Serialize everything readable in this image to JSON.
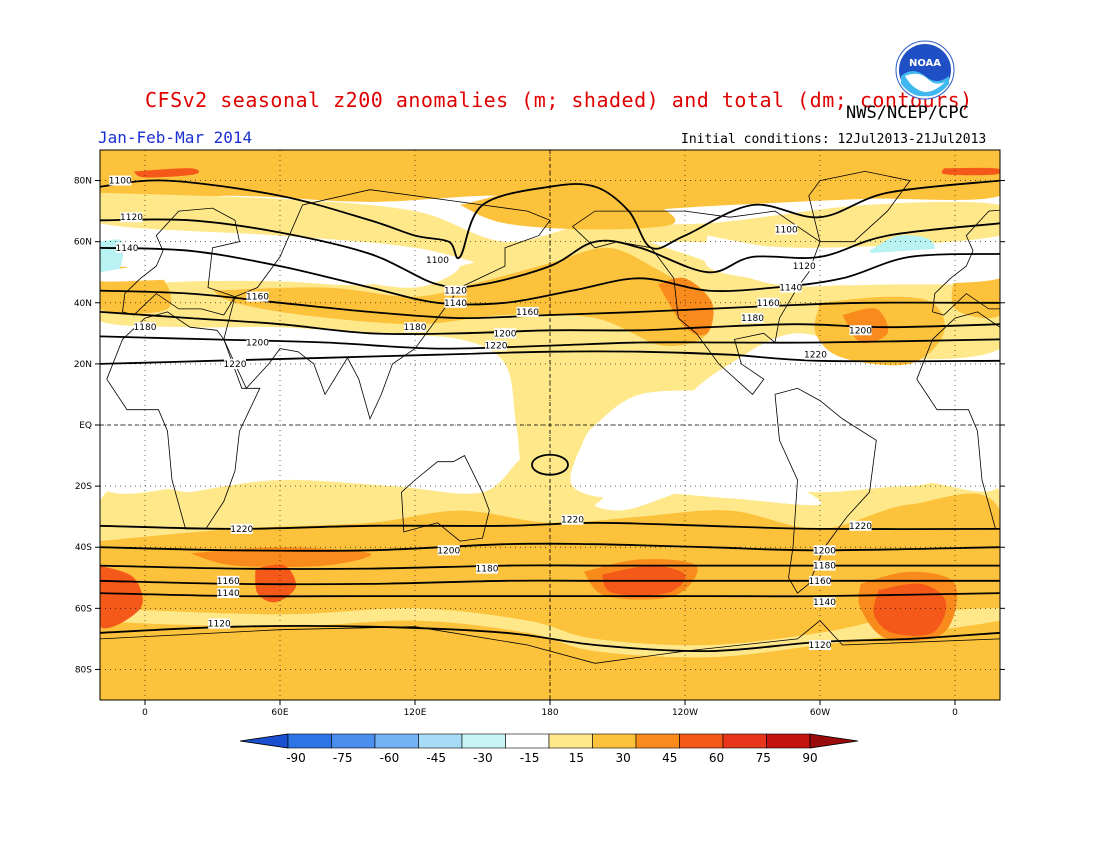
{
  "header": {
    "title": "CFSv2 seasonal z200 anomalies (m; shaded) and total (dm; contours)",
    "agency": "NWS/NCEP/CPC",
    "period": "Jan-Feb-Mar 2014",
    "initial_conditions": "Initial conditions: 12Jul2013-21Jul2013"
  },
  "logo": {
    "text": "NOAA",
    "icon": "noaa-logo"
  },
  "map": {
    "lat_labels": [
      "80N",
      "60N",
      "40N",
      "20N",
      "EQ",
      "20S",
      "40S",
      "60S",
      "80S"
    ],
    "lon_labels": [
      "0",
      "60E",
      "120E",
      "180",
      "120W",
      "60W",
      "0"
    ],
    "lat_values": [
      80,
      60,
      40,
      20,
      0,
      -20,
      -40,
      -60,
      -80
    ],
    "lon_values": [
      0,
      60,
      120,
      180,
      240,
      300,
      360
    ],
    "lon_range": [
      -20,
      380
    ],
    "lat_range": [
      -90,
      90
    ],
    "colors": {
      "c15_30": "#ffe88a",
      "c30_45": "#fdc23c",
      "c45_60": "#f98b1c",
      "cneg15_30": "#b9f2f2",
      "c60_75": "#f5591a"
    },
    "contours": [
      {
        "label": "1100",
        "points": [
          [
            -20,
            78
          ],
          [
            10,
            80
          ],
          [
            60,
            75
          ],
          [
            100,
            67
          ],
          [
            120,
            62
          ],
          [
            135,
            60
          ],
          [
            140,
            55
          ],
          [
            150,
            72
          ],
          [
            180,
            78
          ],
          [
            200,
            78
          ],
          [
            215,
            70
          ],
          [
            225,
            58
          ],
          [
            240,
            62
          ],
          [
            270,
            72
          ],
          [
            300,
            68
          ],
          [
            330,
            76
          ],
          [
            380,
            80
          ]
        ]
      },
      {
        "label": "1120",
        "points": [
          [
            -20,
            67
          ],
          [
            20,
            67
          ],
          [
            60,
            63
          ],
          [
            100,
            56
          ],
          [
            130,
            46
          ],
          [
            150,
            46
          ],
          [
            180,
            52
          ],
          [
            200,
            60
          ],
          [
            220,
            58
          ],
          [
            250,
            50
          ],
          [
            270,
            55
          ],
          [
            300,
            55
          ],
          [
            330,
            62
          ],
          [
            380,
            66
          ]
        ]
      },
      {
        "label": "1140",
        "points": [
          [
            -20,
            58
          ],
          [
            20,
            57
          ],
          [
            60,
            52
          ],
          [
            100,
            45
          ],
          [
            130,
            40
          ],
          [
            160,
            40
          ],
          [
            190,
            44
          ],
          [
            220,
            48
          ],
          [
            250,
            44
          ],
          [
            280,
            45
          ],
          [
            310,
            48
          ],
          [
            340,
            55
          ],
          [
            380,
            56
          ]
        ]
      },
      {
        "label": "1160",
        "points": [
          [
            -20,
            44
          ],
          [
            20,
            43
          ],
          [
            60,
            40
          ],
          [
            100,
            37
          ],
          [
            140,
            35
          ],
          [
            180,
            36
          ],
          [
            220,
            37
          ],
          [
            250,
            38
          ],
          [
            280,
            39
          ],
          [
            320,
            40
          ],
          [
            380,
            40
          ]
        ]
      },
      {
        "label": "1180",
        "points": [
          [
            -20,
            37
          ],
          [
            20,
            35
          ],
          [
            60,
            33
          ],
          [
            100,
            30
          ],
          [
            140,
            30
          ],
          [
            180,
            31
          ],
          [
            220,
            31
          ],
          [
            250,
            32
          ],
          [
            290,
            33
          ],
          [
            330,
            32
          ],
          [
            380,
            33
          ]
        ]
      },
      {
        "label": "1200",
        "points": [
          [
            -20,
            29
          ],
          [
            30,
            28
          ],
          [
            80,
            27
          ],
          [
            130,
            25
          ],
          [
            180,
            26
          ],
          [
            220,
            27
          ],
          [
            260,
            27
          ],
          [
            300,
            27
          ],
          [
            380,
            28
          ]
        ]
      },
      {
        "label": "1220",
        "points": [
          [
            -20,
            20
          ],
          [
            30,
            21
          ],
          [
            80,
            22
          ],
          [
            130,
            23
          ],
          [
            180,
            24
          ],
          [
            220,
            24
          ],
          [
            260,
            23
          ],
          [
            300,
            21
          ],
          [
            380,
            21
          ]
        ]
      },
      {
        "label": "1220",
        "points": [
          [
            -20,
            -33
          ],
          [
            40,
            -34
          ],
          [
            100,
            -33
          ],
          [
            160,
            -33
          ],
          [
            200,
            -32
          ],
          [
            250,
            -33
          ],
          [
            300,
            -34
          ],
          [
            380,
            -34
          ]
        ]
      },
      {
        "label": "1200",
        "points": [
          [
            -20,
            -40
          ],
          [
            40,
            -41
          ],
          [
            100,
            -41
          ],
          [
            160,
            -39
          ],
          [
            200,
            -39
          ],
          [
            250,
            -40
          ],
          [
            300,
            -41
          ],
          [
            380,
            -40
          ]
        ]
      },
      {
        "label": "1180",
        "points": [
          [
            -20,
            -46
          ],
          [
            40,
            -47
          ],
          [
            100,
            -47
          ],
          [
            160,
            -46
          ],
          [
            200,
            -46
          ],
          [
            250,
            -46
          ],
          [
            300,
            -46
          ],
          [
            380,
            -46
          ]
        ]
      },
      {
        "label": "1160",
        "points": [
          [
            -20,
            -51
          ],
          [
            40,
            -52
          ],
          [
            100,
            -52
          ],
          [
            160,
            -51
          ],
          [
            200,
            -51
          ],
          [
            250,
            -51
          ],
          [
            300,
            -51
          ],
          [
            380,
            -51
          ]
        ]
      },
      {
        "label": "1140",
        "points": [
          [
            -20,
            -55
          ],
          [
            40,
            -56
          ],
          [
            100,
            -56
          ],
          [
            160,
            -56
          ],
          [
            200,
            -56
          ],
          [
            250,
            -56
          ],
          [
            300,
            -56
          ],
          [
            380,
            -55
          ]
        ]
      },
      {
        "label": "1120",
        "points": [
          [
            -20,
            -68
          ],
          [
            40,
            -66
          ],
          [
            100,
            -66
          ],
          [
            160,
            -68
          ],
          [
            200,
            -72
          ],
          [
            250,
            -74
          ],
          [
            300,
            -71
          ],
          [
            340,
            -70
          ],
          [
            380,
            -68
          ]
        ]
      }
    ],
    "contour_labels": [
      {
        "text": "1100",
        "lon": -11,
        "lat": 80
      },
      {
        "text": "1120",
        "lon": -6,
        "lat": 68
      },
      {
        "text": "1140",
        "lon": -8,
        "lat": 58
      },
      {
        "text": "1160",
        "lon": 50,
        "lat": 42
      },
      {
        "text": "1180",
        "lon": 0,
        "lat": 32
      },
      {
        "text": "1200",
        "lon": 50,
        "lat": 27
      },
      {
        "text": "1220",
        "lon": 40,
        "lat": 20
      },
      {
        "text": "1100",
        "lon": 130,
        "lat": 54
      },
      {
        "text": "1120",
        "lon": 138,
        "lat": 44
      },
      {
        "text": "1140",
        "lon": 138,
        "lat": 40
      },
      {
        "text": "1180",
        "lon": 120,
        "lat": 32
      },
      {
        "text": "1160",
        "lon": 170,
        "lat": 37
      },
      {
        "text": "1200",
        "lon": 160,
        "lat": 30
      },
      {
        "text": "1220",
        "lon": 156,
        "lat": 26
      },
      {
        "text": "1100",
        "lon": 285,
        "lat": 64
      },
      {
        "text": "1120",
        "lon": 293,
        "lat": 52
      },
      {
        "text": "1140",
        "lon": 287,
        "lat": 45
      },
      {
        "text": "1160",
        "lon": 277,
        "lat": 40
      },
      {
        "text": "1180",
        "lon": 270,
        "lat": 35
      },
      {
        "text": "1200",
        "lon": 318,
        "lat": 31
      },
      {
        "text": "1220",
        "lon": 298,
        "lat": 23
      },
      {
        "text": "1220",
        "lon": 43,
        "lat": -34
      },
      {
        "text": "1220",
        "lon": 190,
        "lat": -31
      },
      {
        "text": "1220",
        "lon": 318,
        "lat": -33
      },
      {
        "text": "1200",
        "lon": 135,
        "lat": -41
      },
      {
        "text": "1200",
        "lon": 302,
        "lat": -41
      },
      {
        "text": "1180",
        "lon": 152,
        "lat": -47
      },
      {
        "text": "1180",
        "lon": 302,
        "lat": -46
      },
      {
        "text": "1160",
        "lon": 37,
        "lat": -51
      },
      {
        "text": "1160",
        "lon": 300,
        "lat": -51
      },
      {
        "text": "1140",
        "lon": 37,
        "lat": -55
      },
      {
        "text": "1140",
        "lon": 302,
        "lat": -58
      },
      {
        "text": "1120",
        "lon": 33,
        "lat": -65
      },
      {
        "text": "1120",
        "lon": 300,
        "lat": -72
      }
    ]
  },
  "colorbar": {
    "labels": [
      "-90",
      "-75",
      "-60",
      "-45",
      "-30",
      "-15",
      "15",
      "30",
      "45",
      "60",
      "75",
      "90"
    ],
    "colors": [
      "#1f5fd8",
      "#2d74e6",
      "#4a8fee",
      "#73b2f4",
      "#a6dcf6",
      "#c9f4f4",
      "#ffffff",
      "#ffe88a",
      "#fdc23c",
      "#f98b1c",
      "#f5591a",
      "#e8361a",
      "#c51410",
      "#a00d0d"
    ],
    "ends": {
      "left": "#1a4fd0",
      "right": "#9a0c0c"
    }
  }
}
